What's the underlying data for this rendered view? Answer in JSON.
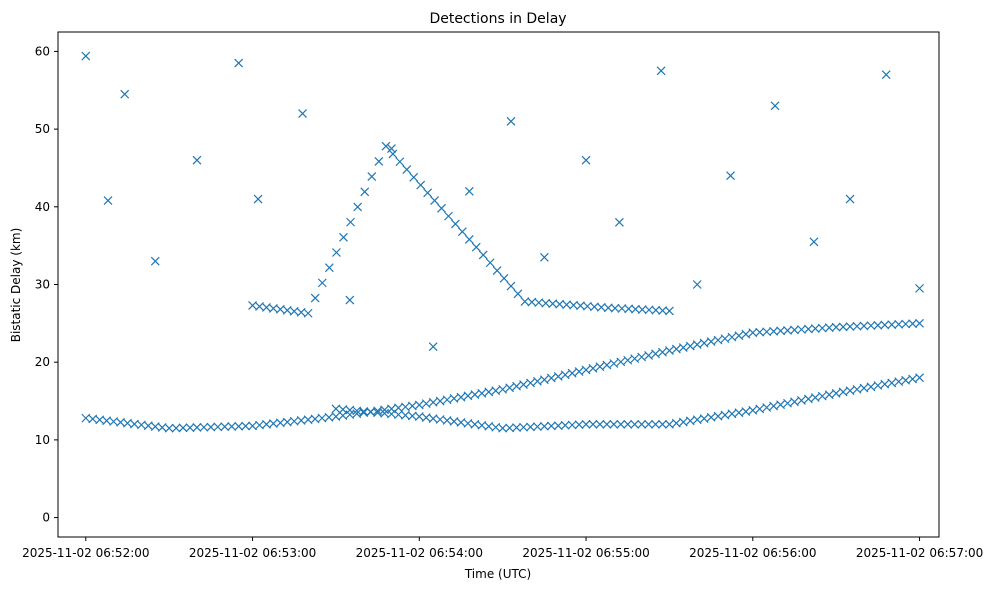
{
  "chart_data": {
    "type": "scatter",
    "title": "Detections in Delay",
    "xlabel": "Time (UTC)",
    "ylabel": "Bistatic Delay (km)",
    "marker": "x",
    "color": "#1f77b4",
    "x_unit": "time",
    "xlim": [
      "2025-11-02 06:51:50",
      "2025-11-02 06:57:07"
    ],
    "ylim": [
      -2.5,
      62.5
    ],
    "x_ticks": [
      "2025-11-02 06:52:00",
      "2025-11-02 06:53:00",
      "2025-11-02 06:54:00",
      "2025-11-02 06:55:00",
      "2025-11-02 06:56:00",
      "2025-11-02 06:57:00"
    ],
    "y_ticks": [
      0,
      10,
      20,
      30,
      40,
      50,
      60
    ],
    "grid": false,
    "tracks": [
      {
        "x": [
          "2025-11-02 06:52:00",
          "2025-11-02 06:52:30",
          "2025-11-02 06:53:00",
          "2025-11-02 06:53:30",
          "2025-11-02 06:54:00",
          "2025-11-02 06:54:30",
          "2025-11-02 06:55:00",
          "2025-11-02 06:55:30",
          "2025-11-02 06:56:00",
          "2025-11-02 06:56:30",
          "2025-11-02 06:57:00"
        ],
        "y": [
          12.8,
          11.5,
          11.8,
          13.0,
          14.5,
          16.5,
          19.0,
          21.5,
          23.8,
          24.5,
          25.0
        ]
      },
      {
        "x": [
          "2025-11-02 06:53:30",
          "2025-11-02 06:54:00",
          "2025-11-02 06:54:30",
          "2025-11-02 06:55:00",
          "2025-11-02 06:55:30",
          "2025-11-02 06:56:00",
          "2025-11-02 06:56:30",
          "2025-11-02 06:57:00"
        ],
        "y": [
          14.0,
          13.0,
          11.5,
          12.0,
          12.0,
          13.8,
          16.0,
          18.0
        ]
      },
      {
        "x": [
          "2025-11-02 06:53:00",
          "2025-11-02 06:53:20",
          "2025-11-02 06:53:48",
          "2025-11-02 06:54:38",
          "2025-11-02 06:55:08",
          "2025-11-02 06:55:30"
        ],
        "y": [
          27.3,
          26.3,
          47.8,
          27.8,
          27.0,
          26.6
        ]
      }
    ],
    "scatter": {
      "x": [
        "2025-11-02 06:52:00",
        "2025-11-02 06:52:08",
        "2025-11-02 06:52:14",
        "2025-11-02 06:52:25",
        "2025-11-02 06:52:40",
        "2025-11-02 06:52:55",
        "2025-11-02 06:53:02",
        "2025-11-02 06:53:18",
        "2025-11-02 06:53:35",
        "2025-11-02 06:53:50",
        "2025-11-02 06:54:05",
        "2025-11-02 06:54:18",
        "2025-11-02 06:54:33",
        "2025-11-02 06:54:45",
        "2025-11-02 06:55:00",
        "2025-11-02 06:55:12",
        "2025-11-02 06:55:27",
        "2025-11-02 06:55:40",
        "2025-11-02 06:55:52",
        "2025-11-02 06:56:08",
        "2025-11-02 06:56:22",
        "2025-11-02 06:56:35",
        "2025-11-02 06:56:48",
        "2025-11-02 06:57:00"
      ],
      "y": [
        59.4,
        40.8,
        54.5,
        33.0,
        46.0,
        58.5,
        41.0,
        52.0,
        28.0,
        47.5,
        22.0,
        42.0,
        51.0,
        33.5,
        46.0,
        38.0,
        57.5,
        30.0,
        44.0,
        53.0,
        35.5,
        41.0,
        57.0,
        29.5
      ]
    }
  }
}
